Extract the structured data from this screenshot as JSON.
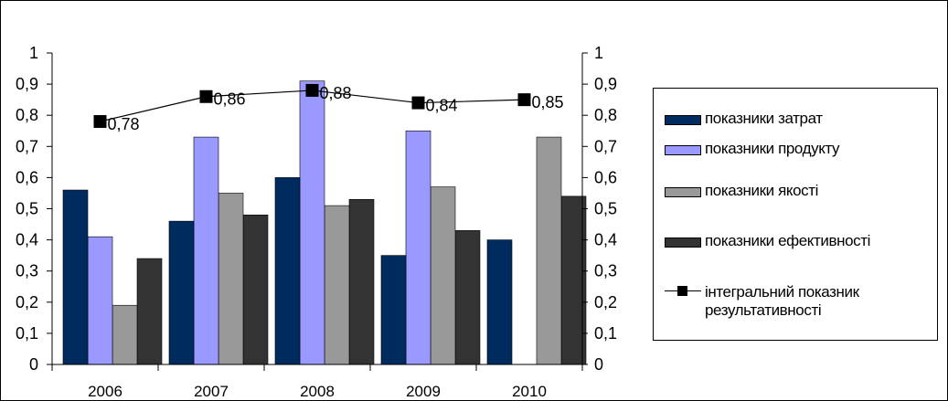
{
  "chart_data": {
    "type": "bar",
    "categories": [
      "2006",
      "2007",
      "2008",
      "2009",
      "2010"
    ],
    "series": [
      {
        "name": "показники затрат",
        "type": "bar",
        "color": "#002b5e",
        "values": [
          0.56,
          0.46,
          0.6,
          0.35,
          0.4
        ]
      },
      {
        "name": "показники продукту",
        "type": "bar",
        "color": "#9999ff",
        "values": [
          0.41,
          0.73,
          0.91,
          0.75,
          null
        ]
      },
      {
        "name": "показники якості",
        "type": "bar",
        "color": "#999999",
        "values": [
          0.19,
          0.55,
          0.51,
          0.57,
          0.73
        ]
      },
      {
        "name": "показники ефективності",
        "type": "bar",
        "color": "#333333",
        "values": [
          0.34,
          0.48,
          0.53,
          0.43,
          0.54
        ]
      },
      {
        "name": "інтегральний показник результативності",
        "type": "line",
        "color": "#000000",
        "values": [
          0.78,
          0.86,
          0.88,
          0.84,
          0.85
        ]
      }
    ],
    "point_labels": [
      "0,78",
      "0,86",
      "0,88",
      "0,84",
      "0,85"
    ],
    "y_ticks": [
      "0",
      "0,1",
      "0,2",
      "0,3",
      "0,4",
      "0,5",
      "0,6",
      "0,7",
      "0,8",
      "0,9",
      "1"
    ],
    "ylim": [
      0,
      1
    ],
    "secondary_ylim": [
      0,
      1
    ],
    "grid": false,
    "legend_position": "right"
  }
}
